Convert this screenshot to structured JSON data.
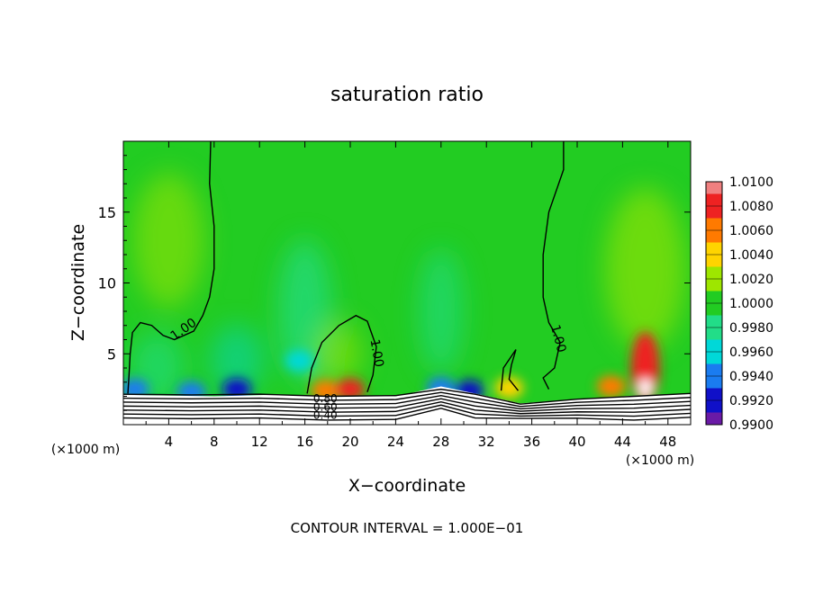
{
  "chart_data": {
    "type": "heatmap",
    "title": "saturation ratio",
    "xlabel": "X−coordinate",
    "ylabel": "Z−coordinate",
    "x_unit_left": "(×1000 m)",
    "x_unit_right": "(×1000 m)",
    "footer": "CONTOUR INTERVAL = 1.000E−01",
    "xlim": [
      0,
      50
    ],
    "ylim": [
      0,
      20
    ],
    "x_ticks": [
      4,
      8,
      12,
      16,
      20,
      24,
      28,
      32,
      36,
      40,
      44,
      48
    ],
    "y_ticks": [
      5,
      10,
      15
    ],
    "colorbar": {
      "levels": [
        "1.0100",
        "1.0080",
        "1.0060",
        "1.0040",
        "1.0020",
        "1.0000",
        "0.9980",
        "0.9960",
        "0.9940",
        "0.9920",
        "0.9900"
      ],
      "colors": [
        "#f08080",
        "#ee2222",
        "#ff7a00",
        "#ffd400",
        "#9ee600",
        "#22cc22",
        "#22dd88",
        "#00d8d8",
        "#1a7cf0",
        "#1010c8",
        "#6a1aa6"
      ]
    },
    "contour_labels": [
      {
        "text": "1.00",
        "x": 5.5,
        "z": 6.5
      },
      {
        "text": "1.00",
        "x": 22.0,
        "z": 5.0
      },
      {
        "text": "1.00",
        "x": 38.0,
        "z": 6.0
      },
      {
        "text": "0.80",
        "x": 17.8,
        "z": 1.6
      },
      {
        "text": "0.60",
        "x": 17.8,
        "z": 1.0
      },
      {
        "text": "0.40",
        "x": 17.8,
        "z": 0.4
      }
    ],
    "background_value": 1.0,
    "features": [
      {
        "x": 1.0,
        "z": 2.5,
        "value": 0.995,
        "kind": "dry-cyan"
      },
      {
        "x": 6.0,
        "z": 2.3,
        "value": 0.9955,
        "kind": "dry-cyan"
      },
      {
        "x": 10.0,
        "z": 2.5,
        "value": 0.9925,
        "kind": "dry-blue"
      },
      {
        "x": 15.5,
        "z": 4.5,
        "value": 0.9975,
        "kind": "mild"
      },
      {
        "x": 17.8,
        "z": 2.4,
        "value": 1.006,
        "kind": "moist-red"
      },
      {
        "x": 20.0,
        "z": 2.5,
        "value": 1.0085,
        "kind": "moist-red"
      },
      {
        "x": 28.0,
        "z": 2.6,
        "value": 0.9945,
        "kind": "dry-blue"
      },
      {
        "x": 30.5,
        "z": 2.4,
        "value": 0.9925,
        "kind": "dry-blue"
      },
      {
        "x": 34.0,
        "z": 2.6,
        "value": 1.005,
        "kind": "moist"
      },
      {
        "x": 43.0,
        "z": 2.7,
        "value": 1.006,
        "kind": "moist-red"
      },
      {
        "x": 46.0,
        "z": 4.0,
        "value": 1.008,
        "kind": "moist-red"
      },
      {
        "x": 46.0,
        "z": 2.6,
        "value": 1.01,
        "kind": "saturated"
      }
    ]
  }
}
